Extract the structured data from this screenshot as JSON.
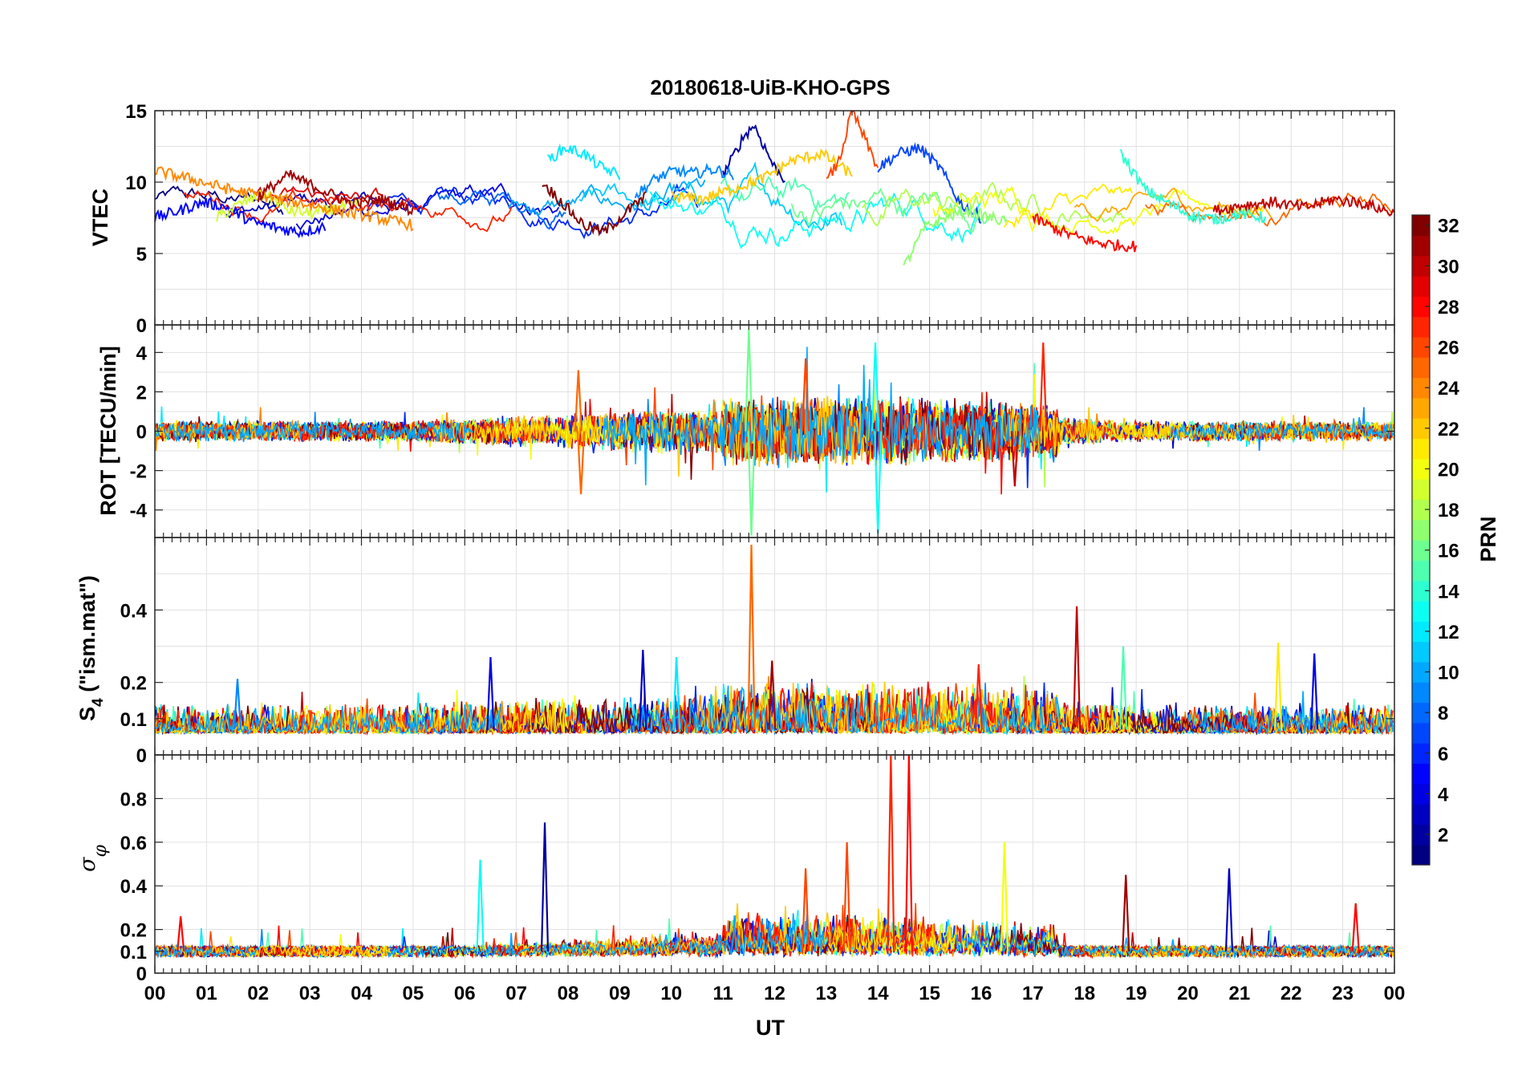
{
  "chart_data": [
    {
      "type": "line",
      "panel": "vtec",
      "title": "20180618-UiB-KHO-GPS",
      "ylabel": "VTEC",
      "ylim": [
        0,
        15
      ],
      "yticks": [
        0,
        5,
        10,
        15
      ],
      "ytick_labels": [
        "0",
        "5",
        "10",
        "15"
      ],
      "xlim": [
        0,
        24
      ],
      "grid": true,
      "series": [
        {
          "name": "PRN 2",
          "prn": 2,
          "start": 11.0,
          "end": 12.2,
          "values": [
            10.5,
            11.8,
            13.2,
            14.0,
            12.5,
            11.0,
            10.2
          ]
        },
        {
          "name": "PRN 5",
          "prn": 5,
          "start": 0.0,
          "end": 3.3,
          "values": [
            7.5,
            8.0,
            8.6,
            8.2,
            7.2,
            6.8,
            6.5,
            6.9
          ]
        },
        {
          "name": "PRN 7",
          "prn": 7,
          "start": 14.0,
          "end": 16.0,
          "values": [
            11.0,
            12.0,
            12.4,
            11.0,
            8.5,
            7.5
          ]
        },
        {
          "name": "PRN 9",
          "prn": 9,
          "start": 9.3,
          "end": 11.2,
          "values": [
            9.0,
            10.2,
            10.8,
            10.6,
            10.9,
            10.5
          ]
        },
        {
          "name": "PRN 12",
          "prn": 12,
          "start": 7.6,
          "end": 9.0,
          "values": [
            11.5,
            12.4,
            12.0,
            11.0,
            10.5
          ]
        },
        {
          "name": "PRN 14",
          "prn": 14,
          "start": 18.7,
          "end": 21.5,
          "values": [
            12.0,
            9.5,
            8.5,
            7.6,
            7.4,
            7.8,
            7.5
          ]
        },
        {
          "name": "PRN 17",
          "prn": 17,
          "start": 14.5,
          "end": 16.5,
          "values": [
            4.0,
            6.8,
            7.5,
            8.0,
            7.6,
            7.2
          ]
        },
        {
          "name": "PRN 19",
          "prn": 19,
          "start": 1.2,
          "end": 4.0,
          "values": [
            7.5,
            8.5,
            9.2,
            8.0,
            7.8,
            8.2,
            8.5
          ]
        },
        {
          "name": "PRN 22",
          "prn": 22,
          "start": 10.0,
          "end": 13.5,
          "values": [
            9.0,
            8.8,
            9.5,
            10.2,
            11.5,
            12.0,
            10.5
          ]
        },
        {
          "name": "PRN 24",
          "prn": 24,
          "start": 0.0,
          "end": 5.0,
          "values": [
            10.8,
            10.2,
            9.5,
            9.0,
            8.5,
            8.0,
            7.5,
            7.0
          ]
        },
        {
          "name": "PRN 26",
          "prn": 26,
          "start": 13.0,
          "end": 14.0,
          "values": [
            10.0,
            11.5,
            15.0,
            13.0,
            11.0
          ]
        },
        {
          "name": "PRN 28",
          "prn": 28,
          "start": 17.0,
          "end": 19.0,
          "values": [
            7.5,
            6.8,
            6.2,
            5.8,
            5.6,
            5.5
          ]
        },
        {
          "name": "PRN 30",
          "prn": 30,
          "start": 20.5,
          "end": 24.0,
          "values": [
            8.0,
            8.4,
            8.6,
            8.2,
            8.8,
            8.5,
            7.8
          ]
        },
        {
          "name": "PRN 31",
          "prn": 31,
          "start": 2.0,
          "end": 5.0,
          "values": [
            9.0,
            10.5,
            9.5,
            8.5,
            8.8,
            8.0
          ]
        },
        {
          "name": "PRN 32",
          "prn": 32,
          "start": 7.5,
          "end": 9.5,
          "values": [
            10.0,
            8.5,
            7.0,
            6.5,
            7.8,
            9.0
          ]
        }
      ]
    },
    {
      "type": "line",
      "panel": "rot",
      "ylabel": "ROT [TECU/min]",
      "ylim": [
        -5.4,
        5.4
      ],
      "yticks": [
        -4,
        -2,
        0,
        2,
        4
      ],
      "ytick_labels": [
        "-4",
        "-2",
        "0",
        "2",
        "4"
      ],
      "xlim": [
        0,
        24
      ],
      "grid": true,
      "spikes": [
        {
          "x": 11.5,
          "value": 5.2,
          "prn": 16
        },
        {
          "x": 11.55,
          "value": -5.3,
          "prn": 16
        },
        {
          "x": 13.95,
          "value": 4.5,
          "prn": 13
        },
        {
          "x": 14.0,
          "value": -5.2,
          "prn": 13
        },
        {
          "x": 17.2,
          "value": 4.5,
          "prn": 27
        },
        {
          "x": 8.2,
          "value": 3.1,
          "prn": 25
        },
        {
          "x": 8.25,
          "value": -3.2,
          "prn": 25
        },
        {
          "x": 12.6,
          "value": 3.7,
          "prn": 26
        },
        {
          "x": 16.65,
          "value": -2.8,
          "prn": 30
        }
      ]
    },
    {
      "type": "line",
      "panel": "s4",
      "ylabel": "S4 (\"ism.mat\")",
      "ylim": [
        0,
        0.6
      ],
      "yticks": [
        0,
        0.1,
        0.2,
        0.4
      ],
      "ytick_labels": [
        "0",
        "0.1",
        "0.2",
        "0.4"
      ],
      "xlim": [
        0,
        24
      ],
      "grid": true,
      "spikes": [
        {
          "x": 11.55,
          "value": 0.58,
          "prn": 25
        },
        {
          "x": 17.85,
          "value": 0.41,
          "prn": 30
        },
        {
          "x": 21.75,
          "value": 0.31,
          "prn": 21
        },
        {
          "x": 22.45,
          "value": 0.28,
          "prn": 4
        },
        {
          "x": 18.75,
          "value": 0.3,
          "prn": 15
        },
        {
          "x": 9.45,
          "value": 0.29,
          "prn": 3
        },
        {
          "x": 6.5,
          "value": 0.27,
          "prn": 4
        },
        {
          "x": 10.1,
          "value": 0.27,
          "prn": 12
        },
        {
          "x": 11.95,
          "value": 0.26,
          "prn": 31
        },
        {
          "x": 15.95,
          "value": 0.25,
          "prn": 27
        },
        {
          "x": 1.6,
          "value": 0.21,
          "prn": 9
        }
      ]
    },
    {
      "type": "line",
      "panel": "sigma_phi",
      "ylabel": "σφ",
      "ylim": [
        0,
        1.0
      ],
      "yticks": [
        0,
        0.1,
        0.2,
        0.4,
        0.6,
        0.8
      ],
      "ytick_labels": [
        "0",
        "0.1",
        "0.2",
        "0.4",
        "0.6",
        "0.8"
      ],
      "xlim": [
        0,
        24
      ],
      "xlabel": "UT",
      "xtick_labels": [
        "00",
        "01",
        "02",
        "03",
        "04",
        "05",
        "06",
        "07",
        "08",
        "09",
        "10",
        "11",
        "12",
        "13",
        "14",
        "15",
        "16",
        "17",
        "18",
        "19",
        "20",
        "21",
        "22",
        "23",
        "00"
      ],
      "grid": true,
      "spikes": [
        {
          "x": 14.25,
          "value": 1.0,
          "prn": 27
        },
        {
          "x": 14.6,
          "value": 1.0,
          "prn": 28
        },
        {
          "x": 7.55,
          "value": 0.69,
          "prn": 2
        },
        {
          "x": 13.4,
          "value": 0.6,
          "prn": 26
        },
        {
          "x": 16.45,
          "value": 0.6,
          "prn": 20
        },
        {
          "x": 6.3,
          "value": 0.52,
          "prn": 13
        },
        {
          "x": 20.8,
          "value": 0.48,
          "prn": 3
        },
        {
          "x": 18.8,
          "value": 0.45,
          "prn": 31
        },
        {
          "x": 12.6,
          "value": 0.48,
          "prn": 26
        },
        {
          "x": 0.5,
          "value": 0.26,
          "prn": 28
        },
        {
          "x": 23.25,
          "value": 0.32,
          "prn": 28
        }
      ]
    }
  ],
  "colorbar": {
    "label": "PRN",
    "range": [
      1,
      32
    ],
    "ticks": [
      2,
      4,
      6,
      8,
      10,
      12,
      14,
      16,
      18,
      20,
      22,
      24,
      26,
      28,
      30,
      32
    ],
    "tick_labels": [
      "2",
      "4",
      "6",
      "8",
      "10",
      "12",
      "14",
      "16",
      "18",
      "20",
      "22",
      "24",
      "26",
      "28",
      "30",
      "32"
    ],
    "colormap": "jet"
  }
}
